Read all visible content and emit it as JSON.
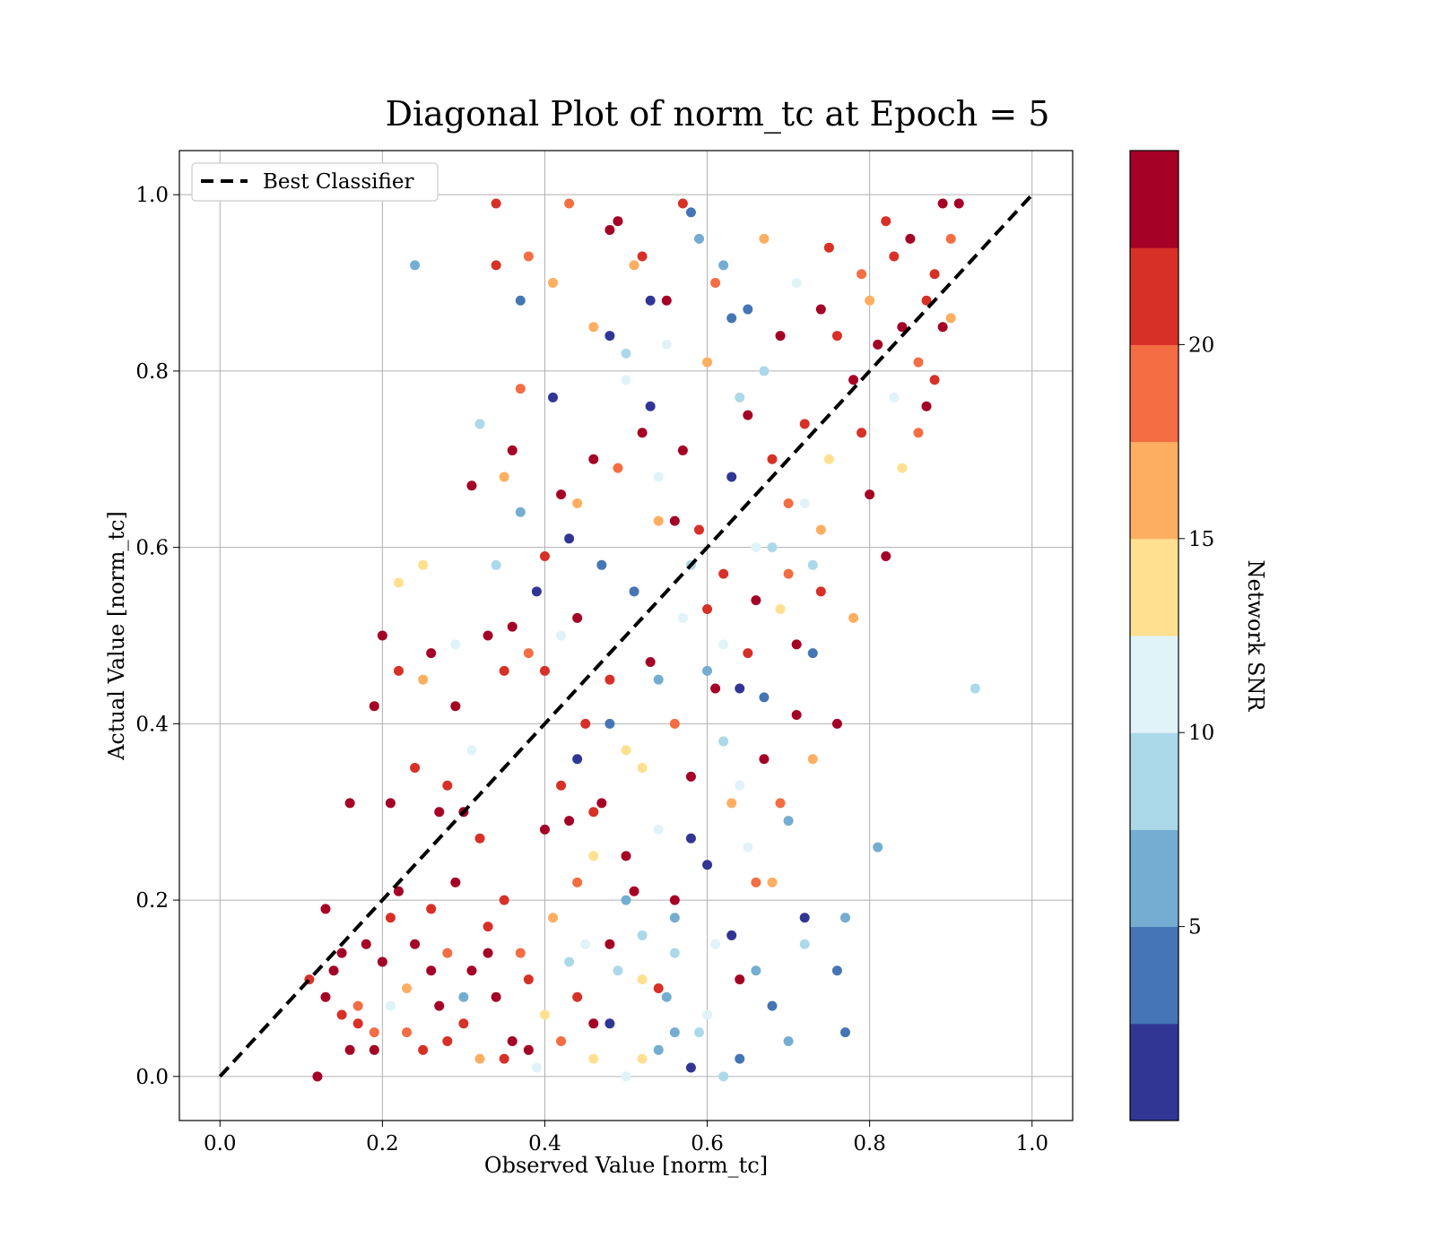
{
  "chart_data": {
    "type": "scatter",
    "title": "Diagonal Plot of norm_tc at Epoch = 5",
    "xlabel": "Observed Value [norm_tc]",
    "ylabel": "Actual Value [norm_tc]",
    "xlim": [
      -0.05,
      1.05
    ],
    "ylim": [
      -0.05,
      1.05
    ],
    "xticks": [
      "0.0",
      "0.2",
      "0.4",
      "0.6",
      "0.8",
      "1.0"
    ],
    "yticks": [
      "0.0",
      "0.2",
      "0.4",
      "0.6",
      "0.8",
      "1.0"
    ],
    "grid": true,
    "legend": {
      "placement": "top-left",
      "entries": [
        {
          "label": "Best Classifier",
          "style": "dashed",
          "color": "#000000"
        }
      ]
    },
    "reference_line": {
      "label": "Best Classifier",
      "x": [
        0.0,
        1.0
      ],
      "y": [
        0.0,
        1.0
      ]
    },
    "colorbar": {
      "label": "Network SNR",
      "range": [
        0,
        25
      ],
      "ticks": [
        "5",
        "10",
        "15",
        "20"
      ],
      "bins": 10,
      "colors": [
        "#313695",
        "#4575b4",
        "#74add1",
        "#abd9e9",
        "#e0f3f8",
        "#fee090",
        "#fdae61",
        "#f46d43",
        "#d73027",
        "#a50026"
      ]
    },
    "point_color_range": [
      0,
      25
    ],
    "points": [
      [
        0.12,
        0.0,
        23
      ],
      [
        0.13,
        0.19,
        23
      ],
      [
        0.11,
        0.11,
        22
      ],
      [
        0.15,
        0.07,
        21
      ],
      [
        0.14,
        0.12,
        23
      ],
      [
        0.17,
        0.08,
        19
      ],
      [
        0.16,
        0.03,
        23
      ],
      [
        0.18,
        0.15,
        23
      ],
      [
        0.19,
        0.05,
        18
      ],
      [
        0.2,
        0.13,
        23
      ],
      [
        0.21,
        0.18,
        22
      ],
      [
        0.22,
        0.21,
        23
      ],
      [
        0.23,
        0.1,
        17
      ],
      [
        0.24,
        0.15,
        23
      ],
      [
        0.25,
        0.03,
        21
      ],
      [
        0.26,
        0.19,
        22
      ],
      [
        0.27,
        0.08,
        23
      ],
      [
        0.28,
        0.14,
        19
      ],
      [
        0.29,
        0.22,
        23
      ],
      [
        0.3,
        0.06,
        21
      ],
      [
        0.31,
        0.12,
        23
      ],
      [
        0.32,
        0.02,
        16
      ],
      [
        0.33,
        0.17,
        22
      ],
      [
        0.34,
        0.09,
        23
      ],
      [
        0.35,
        0.2,
        21
      ],
      [
        0.36,
        0.04,
        23
      ],
      [
        0.37,
        0.14,
        18
      ],
      [
        0.38,
        0.11,
        22
      ],
      [
        0.39,
        0.01,
        12
      ],
      [
        0.13,
        0.09,
        23
      ],
      [
        0.16,
        0.31,
        23
      ],
      [
        0.19,
        0.42,
        23
      ],
      [
        0.2,
        0.5,
        23
      ],
      [
        0.21,
        0.31,
        23
      ],
      [
        0.22,
        0.46,
        20
      ],
      [
        0.24,
        0.35,
        21
      ],
      [
        0.25,
        0.45,
        17
      ],
      [
        0.26,
        0.48,
        23
      ],
      [
        0.27,
        0.3,
        23
      ],
      [
        0.28,
        0.33,
        22
      ],
      [
        0.29,
        0.42,
        23
      ],
      [
        0.3,
        0.3,
        23
      ],
      [
        0.31,
        0.67,
        23
      ],
      [
        0.32,
        0.27,
        22
      ],
      [
        0.33,
        0.5,
        23
      ],
      [
        0.34,
        0.99,
        22
      ],
      [
        0.34,
        0.92,
        21
      ],
      [
        0.35,
        0.46,
        20
      ],
      [
        0.36,
        0.71,
        23
      ],
      [
        0.37,
        0.88,
        3
      ],
      [
        0.37,
        0.78,
        19
      ],
      [
        0.38,
        0.93,
        19
      ],
      [
        0.24,
        0.92,
        6
      ],
      [
        0.32,
        0.74,
        9
      ],
      [
        0.35,
        0.68,
        16
      ],
      [
        0.37,
        0.64,
        7
      ],
      [
        0.39,
        0.55,
        2
      ],
      [
        0.4,
        0.59,
        21
      ],
      [
        0.4,
        0.46,
        20
      ],
      [
        0.41,
        0.77,
        2
      ],
      [
        0.41,
        0.9,
        15
      ],
      [
        0.42,
        0.66,
        23
      ],
      [
        0.43,
        0.99,
        18
      ],
      [
        0.43,
        0.61,
        2
      ],
      [
        0.42,
        0.33,
        22
      ],
      [
        0.43,
        0.29,
        23
      ],
      [
        0.44,
        0.52,
        23
      ],
      [
        0.44,
        0.22,
        18
      ],
      [
        0.45,
        0.4,
        21
      ],
      [
        0.45,
        0.15,
        12
      ],
      [
        0.46,
        0.06,
        23
      ],
      [
        0.46,
        0.85,
        15
      ],
      [
        0.47,
        0.58,
        4
      ],
      [
        0.47,
        0.31,
        23
      ],
      [
        0.48,
        0.96,
        23
      ],
      [
        0.48,
        0.45,
        22
      ],
      [
        0.49,
        0.12,
        8
      ],
      [
        0.49,
        0.69,
        19
      ],
      [
        0.5,
        0.37,
        13
      ],
      [
        0.5,
        0.82,
        9
      ],
      [
        0.51,
        0.21,
        23
      ],
      [
        0.51,
        0.55,
        3
      ],
      [
        0.52,
        0.93,
        21
      ],
      [
        0.52,
        0.02,
        14
      ],
      [
        0.53,
        0.47,
        23
      ],
      [
        0.53,
        0.76,
        2
      ],
      [
        0.54,
        0.28,
        10
      ],
      [
        0.54,
        0.63,
        16
      ],
      [
        0.55,
        0.09,
        5
      ],
      [
        0.55,
        0.88,
        23
      ],
      [
        0.56,
        0.4,
        19
      ],
      [
        0.56,
        0.18,
        7
      ],
      [
        0.57,
        0.71,
        23
      ],
      [
        0.57,
        0.52,
        11
      ],
      [
        0.58,
        0.98,
        3
      ],
      [
        0.58,
        0.34,
        23
      ],
      [
        0.59,
        0.05,
        9
      ],
      [
        0.59,
        0.62,
        21
      ],
      [
        0.6,
        0.81,
        17
      ],
      [
        0.6,
        0.24,
        2
      ],
      [
        0.61,
        0.44,
        23
      ],
      [
        0.61,
        0.15,
        12
      ],
      [
        0.62,
        0.92,
        5
      ],
      [
        0.62,
        0.57,
        22
      ],
      [
        0.63,
        0.68,
        1
      ],
      [
        0.63,
        0.31,
        15
      ],
      [
        0.64,
        0.11,
        23
      ],
      [
        0.64,
        0.77,
        8
      ],
      [
        0.65,
        0.48,
        20
      ],
      [
        0.65,
        0.87,
        3
      ],
      [
        0.66,
        0.22,
        19
      ],
      [
        0.66,
        0.6,
        10
      ],
      [
        0.67,
        0.36,
        23
      ],
      [
        0.67,
        0.95,
        16
      ],
      [
        0.68,
        0.7,
        22
      ],
      [
        0.68,
        0.08,
        4
      ],
      [
        0.69,
        0.53,
        13
      ],
      [
        0.69,
        0.84,
        23
      ],
      [
        0.7,
        0.29,
        6
      ],
      [
        0.7,
        0.65,
        18
      ],
      [
        0.71,
        0.41,
        23
      ],
      [
        0.71,
        0.9,
        11
      ],
      [
        0.72,
        0.18,
        2
      ],
      [
        0.72,
        0.74,
        21
      ],
      [
        0.73,
        0.58,
        9
      ],
      [
        0.73,
        0.48,
        3
      ],
      [
        0.74,
        0.87,
        23
      ],
      [
        0.74,
        0.62,
        17
      ],
      [
        0.75,
        0.94,
        20
      ],
      [
        0.75,
        0.7,
        14
      ],
      [
        0.76,
        0.4,
        23
      ],
      [
        0.76,
        0.84,
        22
      ],
      [
        0.77,
        0.05,
        4
      ],
      [
        0.77,
        0.18,
        5
      ],
      [
        0.78,
        0.52,
        15
      ],
      [
        0.78,
        0.79,
        23
      ],
      [
        0.79,
        0.91,
        19
      ],
      [
        0.79,
        0.73,
        21
      ],
      [
        0.8,
        0.66,
        23
      ],
      [
        0.8,
        0.88,
        16
      ],
      [
        0.81,
        0.26,
        6
      ],
      [
        0.81,
        0.83,
        23
      ],
      [
        0.82,
        0.97,
        22
      ],
      [
        0.82,
        0.59,
        23
      ],
      [
        0.83,
        0.77,
        12
      ],
      [
        0.83,
        0.93,
        20
      ],
      [
        0.84,
        0.69,
        14
      ],
      [
        0.84,
        0.85,
        23
      ],
      [
        0.85,
        0.95,
        23
      ],
      [
        0.86,
        0.81,
        18
      ],
      [
        0.86,
        0.73,
        19
      ],
      [
        0.87,
        0.88,
        21
      ],
      [
        0.87,
        0.76,
        23
      ],
      [
        0.88,
        0.91,
        22
      ],
      [
        0.88,
        0.79,
        20
      ],
      [
        0.89,
        0.85,
        23
      ],
      [
        0.89,
        0.99,
        23
      ],
      [
        0.9,
        0.95,
        18
      ],
      [
        0.9,
        0.86,
        17
      ],
      [
        0.91,
        0.99,
        23
      ],
      [
        0.93,
        0.44,
        9
      ],
      [
        0.76,
        0.12,
        4
      ],
      [
        0.72,
        0.15,
        8
      ],
      [
        0.7,
        0.04,
        7
      ],
      [
        0.68,
        0.22,
        16
      ],
      [
        0.66,
        0.12,
        5
      ],
      [
        0.64,
        0.02,
        3
      ],
      [
        0.62,
        0.0,
        8
      ],
      [
        0.6,
        0.07,
        10
      ],
      [
        0.58,
        0.01,
        2
      ],
      [
        0.56,
        0.14,
        9
      ],
      [
        0.54,
        0.03,
        6
      ],
      [
        0.52,
        0.11,
        13
      ],
      [
        0.5,
        0.0,
        11
      ],
      [
        0.48,
        0.06,
        2
      ],
      [
        0.46,
        0.02,
        14
      ],
      [
        0.44,
        0.09,
        21
      ],
      [
        0.42,
        0.04,
        18
      ],
      [
        0.4,
        0.07,
        13
      ],
      [
        0.38,
        0.03,
        23
      ],
      [
        0.6,
        0.46,
        7
      ],
      [
        0.62,
        0.38,
        9
      ],
      [
        0.64,
        0.33,
        12
      ],
      [
        0.58,
        0.27,
        1
      ],
      [
        0.56,
        0.2,
        23
      ],
      [
        0.54,
        0.45,
        6
      ],
      [
        0.52,
        0.35,
        14
      ],
      [
        0.5,
        0.25,
        23
      ],
      [
        0.48,
        0.4,
        3
      ],
      [
        0.46,
        0.3,
        22
      ],
      [
        0.66,
        0.54,
        23
      ],
      [
        0.64,
        0.44,
        2
      ],
      [
        0.62,
        0.49,
        11
      ],
      [
        0.6,
        0.53,
        22
      ],
      [
        0.58,
        0.58,
        8
      ],
      [
        0.56,
        0.63,
        23
      ],
      [
        0.54,
        0.68,
        10
      ],
      [
        0.52,
        0.73,
        23
      ],
      [
        0.5,
        0.79,
        12
      ],
      [
        0.48,
        0.84,
        2
      ],
      [
        0.67,
        0.8,
        9
      ],
      [
        0.65,
        0.75,
        23
      ],
      [
        0.63,
        0.86,
        4
      ],
      [
        0.61,
        0.9,
        19
      ],
      [
        0.59,
        0.95,
        5
      ],
      [
        0.57,
        0.99,
        22
      ],
      [
        0.55,
        0.83,
        11
      ],
      [
        0.53,
        0.88,
        1
      ],
      [
        0.51,
        0.92,
        16
      ],
      [
        0.49,
        0.97,
        23
      ],
      [
        0.44,
        0.65,
        17
      ],
      [
        0.46,
        0.7,
        23
      ],
      [
        0.42,
        0.5,
        11
      ],
      [
        0.44,
        0.36,
        2
      ],
      [
        0.46,
        0.25,
        13
      ],
      [
        0.48,
        0.15,
        23
      ],
      [
        0.5,
        0.2,
        6
      ],
      [
        0.52,
        0.16,
        9
      ],
      [
        0.54,
        0.1,
        22
      ],
      [
        0.56,
        0.05,
        5
      ],
      [
        0.63,
        0.16,
        2
      ],
      [
        0.65,
        0.26,
        10
      ],
      [
        0.67,
        0.43,
        4
      ],
      [
        0.69,
        0.31,
        18
      ],
      [
        0.71,
        0.49,
        23
      ],
      [
        0.73,
        0.36,
        17
      ],
      [
        0.68,
        0.6,
        8
      ],
      [
        0.7,
        0.57,
        19
      ],
      [
        0.72,
        0.65,
        11
      ],
      [
        0.74,
        0.55,
        20
      ],
      [
        0.25,
        0.58,
        14
      ],
      [
        0.22,
        0.56,
        14
      ],
      [
        0.29,
        0.49,
        12
      ],
      [
        0.31,
        0.37,
        11
      ],
      [
        0.34,
        0.58,
        9
      ],
      [
        0.36,
        0.51,
        23
      ],
      [
        0.38,
        0.48,
        18
      ],
      [
        0.4,
        0.28,
        23
      ],
      [
        0.41,
        0.18,
        15
      ],
      [
        0.43,
        0.13,
        8
      ],
      [
        0.15,
        0.14,
        23
      ],
      [
        0.17,
        0.06,
        21
      ],
      [
        0.19,
        0.03,
        23
      ],
      [
        0.21,
        0.08,
        12
      ],
      [
        0.23,
        0.05,
        18
      ],
      [
        0.26,
        0.12,
        23
      ],
      [
        0.28,
        0.04,
        21
      ],
      [
        0.3,
        0.09,
        5
      ],
      [
        0.33,
        0.14,
        23
      ],
      [
        0.35,
        0.02,
        20
      ]
    ]
  }
}
